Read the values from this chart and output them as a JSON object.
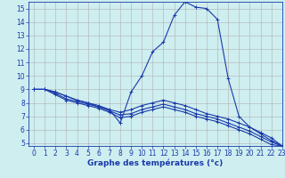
{
  "title": "Graphe des températures (°c)",
  "background_color": "#ceeef0",
  "grid_color": "#b0b0b0",
  "line_color": "#1a3aaa",
  "series": {
    "main_curve": {
      "x": [
        0,
        1,
        2,
        3,
        4,
        5,
        6,
        7,
        8,
        9,
        10,
        11,
        12,
        13,
        14,
        15,
        16,
        17,
        18,
        19,
        20,
        21,
        22,
        23
      ],
      "y": [
        9.0,
        9.0,
        8.8,
        8.5,
        8.2,
        8.0,
        7.7,
        7.5,
        6.5,
        8.8,
        10.0,
        11.8,
        12.5,
        14.5,
        15.5,
        15.1,
        15.0,
        14.2,
        9.8,
        7.0,
        6.2,
        5.7,
        5.2,
        4.8
      ]
    },
    "line2": {
      "x": [
        0,
        1,
        2,
        3,
        4,
        5,
        6,
        7,
        8,
        9,
        10,
        11,
        12,
        13,
        14,
        15,
        16,
        17,
        18,
        19,
        20,
        21,
        22,
        23
      ],
      "y": [
        9.0,
        9.0,
        8.8,
        8.5,
        8.2,
        8.0,
        7.8,
        7.5,
        7.3,
        7.5,
        7.8,
        8.0,
        8.2,
        8.0,
        7.8,
        7.5,
        7.2,
        7.0,
        6.8,
        6.5,
        6.2,
        5.8,
        5.4,
        4.8
      ]
    },
    "line3": {
      "x": [
        0,
        1,
        2,
        3,
        4,
        5,
        6,
        7,
        8,
        9,
        10,
        11,
        12,
        13,
        14,
        15,
        16,
        17,
        18,
        19,
        20,
        21,
        22,
        23
      ],
      "y": [
        9.0,
        9.0,
        8.7,
        8.3,
        8.1,
        7.9,
        7.7,
        7.4,
        7.1,
        7.2,
        7.5,
        7.7,
        7.9,
        7.7,
        7.5,
        7.2,
        7.0,
        6.8,
        6.5,
        6.2,
        5.9,
        5.5,
        5.1,
        4.8
      ]
    },
    "line4": {
      "x": [
        0,
        1,
        2,
        3,
        4,
        5,
        6,
        7,
        8,
        9,
        10,
        11,
        12,
        13,
        14,
        15,
        16,
        17,
        18,
        19,
        20,
        21,
        22,
        23
      ],
      "y": [
        9.0,
        9.0,
        8.6,
        8.2,
        8.0,
        7.8,
        7.6,
        7.3,
        6.9,
        7.0,
        7.3,
        7.5,
        7.7,
        7.5,
        7.3,
        7.0,
        6.8,
        6.6,
        6.3,
        6.0,
        5.7,
        5.3,
        4.9,
        4.8
      ]
    }
  },
  "xlim": [
    -0.5,
    23
  ],
  "ylim": [
    4.8,
    15.5
  ],
  "yticks": [
    5,
    6,
    7,
    8,
    9,
    10,
    11,
    12,
    13,
    14,
    15
  ],
  "xticks": [
    0,
    1,
    2,
    3,
    4,
    5,
    6,
    7,
    8,
    9,
    10,
    11,
    12,
    13,
    14,
    15,
    16,
    17,
    18,
    19,
    20,
    21,
    22,
    23
  ],
  "marker": "+",
  "marker_size": 3,
  "linewidth": 0.8,
  "xlabel_fontsize": 6.5,
  "tick_fontsize": 5.5
}
